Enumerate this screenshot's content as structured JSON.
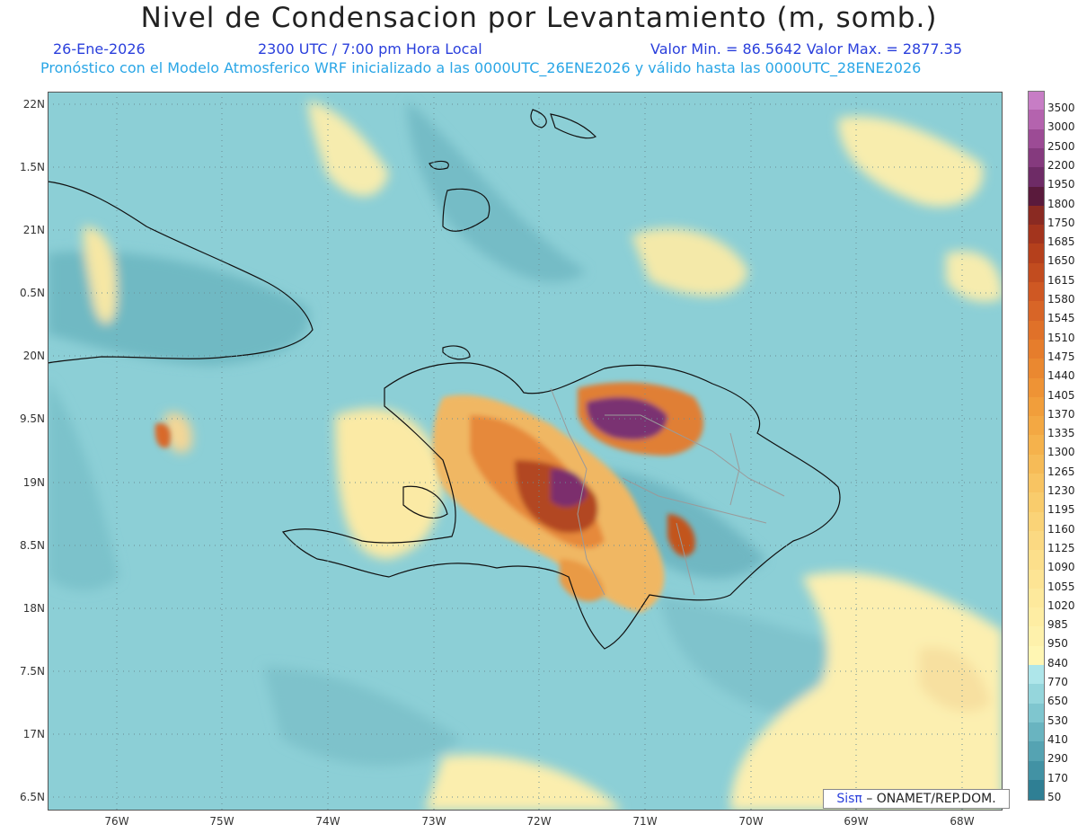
{
  "title": "Nivel de Condensacion por Levantamiento (m, somb.)",
  "date": "26-Ene-2026",
  "time": "2300 UTC / 7:00 pm Hora Local",
  "minmax": "Valor Min. = 86.5642  Valor Max. = 2877.35",
  "forecast": "Pronóstico con el Modelo Atmosferico WRF inicializado a las 0000UTC_26ENE2026 y válido hasta las  0000UTC_28ENE2026",
  "lat_labels": [
    "22N",
    "1.5N",
    "21N",
    "0.5N",
    "20N",
    "9.5N",
    "19N",
    "8.5N",
    "18N",
    "7.5N",
    "17N",
    "6.5N"
  ],
  "lon_labels": [
    "76W",
    "75W",
    "74W",
    "73W",
    "72W",
    "71W",
    "70W",
    "69W",
    "68W"
  ],
  "colorbar": [
    {
      "label": "3500",
      "color": "#c77dc5"
    },
    {
      "label": "3000",
      "color": "#b463ae"
    },
    {
      "label": "2500",
      "color": "#9c4b95"
    },
    {
      "label": "2200",
      "color": "#853a7e"
    },
    {
      "label": "1950",
      "color": "#6e2b66"
    },
    {
      "label": "1800",
      "color": "#5a1a3c"
    },
    {
      "label": "1750",
      "color": "#8a2a22"
    },
    {
      "label": "1685",
      "color": "#a3341d"
    },
    {
      "label": "1650",
      "color": "#b5401c"
    },
    {
      "label": "1615",
      "color": "#c24c1f"
    },
    {
      "label": "1580",
      "color": "#cf5823"
    },
    {
      "label": "1545",
      "color": "#d86527"
    },
    {
      "label": "1510",
      "color": "#e07129"
    },
    {
      "label": "1475",
      "color": "#e67d2c"
    },
    {
      "label": "1440",
      "color": "#ea8830"
    },
    {
      "label": "1405",
      "color": "#ee9335"
    },
    {
      "label": "1370",
      "color": "#f19e3b"
    },
    {
      "label": "1335",
      "color": "#f3a843"
    },
    {
      "label": "1300",
      "color": "#f5b24c"
    },
    {
      "label": "1265",
      "color": "#f6bb57"
    },
    {
      "label": "1230",
      "color": "#f8c462"
    },
    {
      "label": "1195",
      "color": "#f9cc6c"
    },
    {
      "label": "1160",
      "color": "#fad377"
    },
    {
      "label": "1125",
      "color": "#fbd982"
    },
    {
      "label": "1090",
      "color": "#fcdf8b"
    },
    {
      "label": "1055",
      "color": "#fde494"
    },
    {
      "label": "1020",
      "color": "#fde99c"
    },
    {
      "label": "985",
      "color": "#feeda3"
    },
    {
      "label": "950",
      "color": "#fef1ab"
    },
    {
      "label": "840",
      "color": "#fff6b3"
    },
    {
      "label": "770",
      "color": "#aee6ea"
    },
    {
      "label": "650",
      "color": "#95d6dc"
    },
    {
      "label": "530",
      "color": "#7fc6cf"
    },
    {
      "label": "410",
      "color": "#69b4c0"
    },
    {
      "label": "290",
      "color": "#55a3b2"
    },
    {
      "label": "170",
      "color": "#4292a4"
    },
    {
      "label": "50",
      "color": "#2f7f94"
    }
  ],
  "credit": {
    "sis": "Sisπ",
    "org": "– ONAMET/REP.DOM."
  }
}
